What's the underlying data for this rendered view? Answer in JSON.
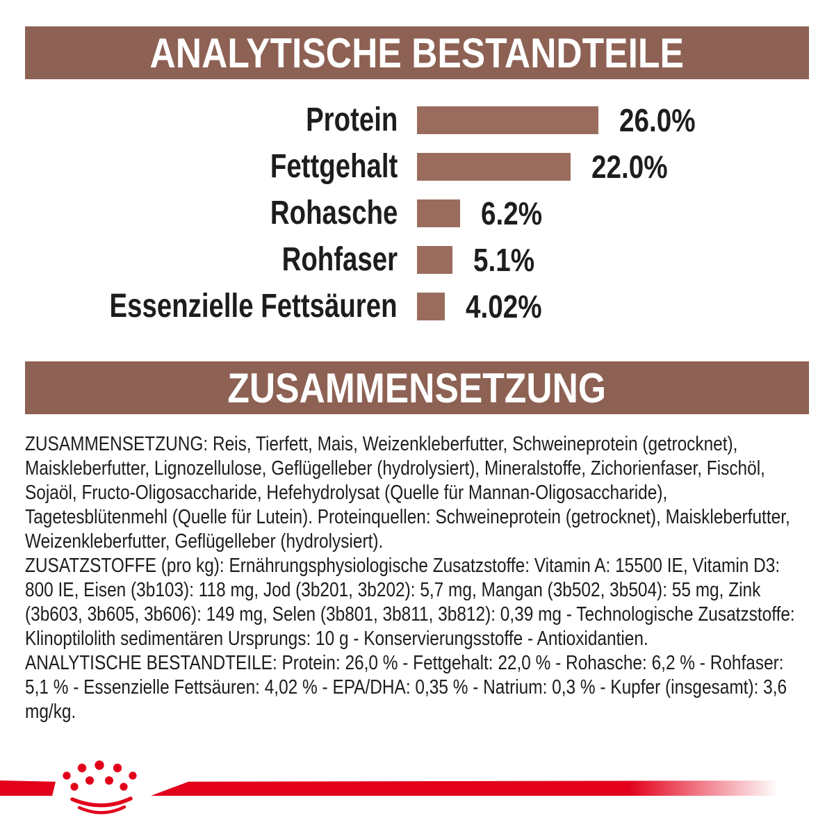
{
  "colors": {
    "brand_red": "#e2001a",
    "bar_brown": "#9a6c5e",
    "header_brown": "#8d6153",
    "text_black": "#1d1d1b"
  },
  "sections": {
    "analytical": {
      "title": "ANALYTISCHE BESTANDTEILE"
    },
    "composition": {
      "title": "ZUSAMMENSETZUNG"
    }
  },
  "chart_data": {
    "type": "bar",
    "orientation": "horizontal",
    "title": "ANALYTISCHE BESTANDTEILE",
    "categories": [
      "Protein",
      "Fettgehalt",
      "Rohasche",
      "Rohfaser",
      "Essenzielle Fettsäuren"
    ],
    "values": [
      26.0,
      22.0,
      6.2,
      5.1,
      4.02
    ],
    "value_labels": [
      "26.0%",
      "22.0%",
      "6.2%",
      "5.1%",
      "4.02%"
    ],
    "unit": "%",
    "xlim": [
      0,
      30
    ],
    "grid": false,
    "bar_color": "#9a6c5e",
    "value_label_position": "right-of-bar"
  },
  "composition_text": {
    "paragraphs": [
      "ZUSAMMENSETZUNG: Reis, Tierfett, Mais, Weizenkleberfutter, Schweineprotein (getrocknet), Maiskleberfutter, Lignozellulose, Geflügelleber (hydrolysiert), Mineralstoffe, Zichorienfaser, Fischöl, Sojaöl, Fructo-Oligosaccharide, Hefehydrolysat (Quelle für Mannan-Oligosaccharide), Tagetesblütenmehl (Quelle für Lutein). Proteinquellen: Schweineprotein (getrocknet), Maiskleberfutter, Weizenkleberfutter, Geflügelleber (hydrolysiert).",
      "ZUSATZSTOFFE (pro kg): Ernährungsphysiologische Zusatzstoffe: Vitamin A: 15500 IE, Vitamin D3: 800 IE, Eisen (3b103): 118 mg, Jod (3b201, 3b202): 5,7 mg, Mangan (3b502, 3b504): 55 mg, Zink (3b603, 3b605, 3b606): 149 mg, Selen (3b801, 3b811, 3b812): 0,39 mg - Technologische Zusatzstoffe: Klinoptilolith sedimentären Ursprungs: 10 g - Konservierungsstoffe - Antioxidantien.",
      "ANALYTISCHE BESTANDTEILE: Protein: 26,0 % - Fettgehalt: 22,0 % - Rohasche: 6,2 % - Rohfaser: 5,1 % - Essenzielle Fettsäuren: 4,02 % - EPA/DHA: 0,35 % - Natrium: 0,3 % - Kupfer (insgesamt): 3,6 mg/kg."
    ]
  },
  "logo": {
    "label": "Royal Canin crown",
    "color": "#e2001a"
  }
}
